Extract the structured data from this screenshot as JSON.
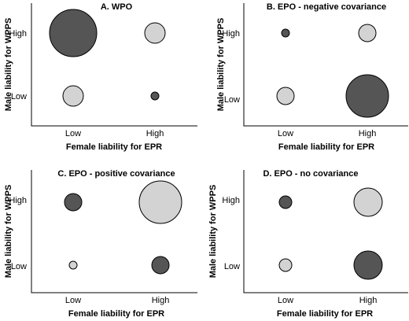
{
  "colors": {
    "dark": "#555555",
    "light": "#d3d3d3"
  },
  "chart_data": [
    {
      "type": "scatter",
      "title": "A. WPO",
      "xlabel": "Female liability for EPR",
      "ylabel": "Male liability for WPPS",
      "xticks": [
        "Low",
        "High"
      ],
      "yticks": [
        "High",
        "Low"
      ],
      "points": [
        {
          "x": "Low",
          "y": "High",
          "size": 30,
          "shade": "dark"
        },
        {
          "x": "High",
          "y": "High",
          "size": 13,
          "shade": "light"
        },
        {
          "x": "Low",
          "y": "Low",
          "size": 13,
          "shade": "light"
        },
        {
          "x": "High",
          "y": "Low",
          "size": 5,
          "shade": "dark"
        }
      ]
    },
    {
      "type": "scatter",
      "title": "B. EPO - negative covariance",
      "xlabel": "Female liability for EPR",
      "ylabel": "Male liability for WPPS",
      "xticks": [
        "Low",
        "High"
      ],
      "yticks": [
        "High",
        "Low"
      ],
      "points": [
        {
          "x": "Low",
          "y": "High",
          "size": 5,
          "shade": "dark"
        },
        {
          "x": "High",
          "y": "High",
          "size": 11,
          "shade": "light"
        },
        {
          "x": "Low",
          "y": "Low",
          "size": 11,
          "shade": "light"
        },
        {
          "x": "High",
          "y": "Low",
          "size": 27,
          "shade": "dark"
        }
      ]
    },
    {
      "type": "scatter",
      "title": "C. EPO - positive covariance",
      "xlabel": "Female liability for EPR",
      "ylabel": "Male liability for WPPS",
      "xticks": [
        "Low",
        "High"
      ],
      "yticks": [
        "High",
        "Low"
      ],
      "points": [
        {
          "x": "Low",
          "y": "High",
          "size": 11,
          "shade": "dark"
        },
        {
          "x": "High",
          "y": "High",
          "size": 27,
          "shade": "light"
        },
        {
          "x": "Low",
          "y": "Low",
          "size": 5,
          "shade": "light"
        },
        {
          "x": "High",
          "y": "Low",
          "size": 11,
          "shade": "dark"
        }
      ]
    },
    {
      "type": "scatter",
      "title": "D. EPO - no covariance",
      "xlabel": "Female liability for EPR",
      "ylabel": "Male liability for WPPS",
      "xticks": [
        "Low",
        "High"
      ],
      "yticks": [
        "High",
        "Low"
      ],
      "points": [
        {
          "x": "Low",
          "y": "High",
          "size": 8,
          "shade": "dark"
        },
        {
          "x": "High",
          "y": "High",
          "size": 18,
          "shade": "light"
        },
        {
          "x": "Low",
          "y": "Low",
          "size": 8,
          "shade": "light"
        },
        {
          "x": "High",
          "y": "Low",
          "size": 18,
          "shade": "dark"
        }
      ]
    }
  ]
}
